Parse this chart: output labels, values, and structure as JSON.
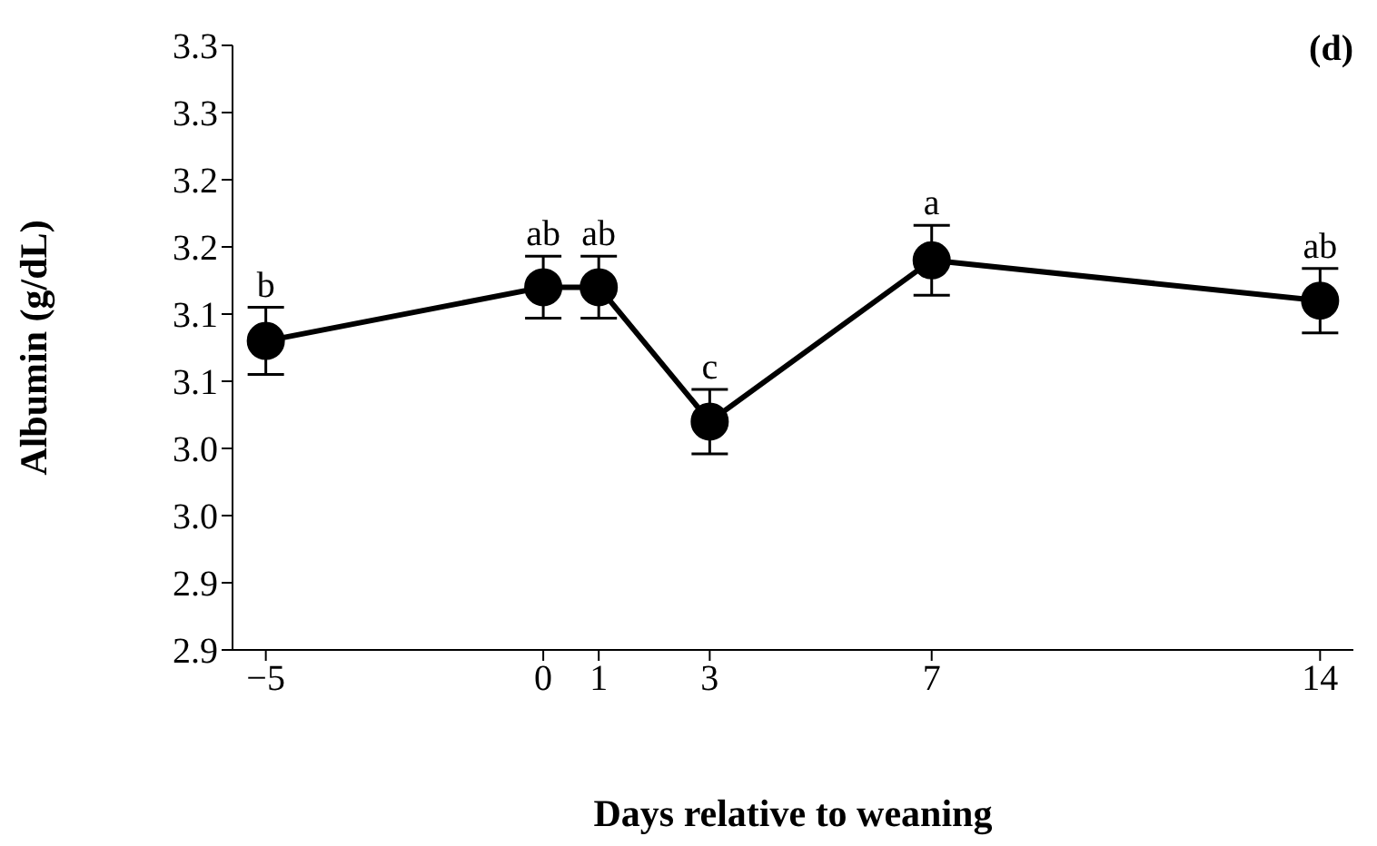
{
  "chart_data": {
    "type": "line",
    "xlabel": "Days relative to weaning",
    "ylabel": "Albumin (g/dL)",
    "x": [
      -5,
      0,
      1,
      3,
      7,
      14
    ],
    "series": [
      {
        "color": "#000000",
        "values": [
          3.13,
          3.17,
          3.17,
          3.07,
          3.19,
          3.16
        ],
        "errors": [
          0.025,
          0.023,
          0.023,
          0.024,
          0.026,
          0.024
        ]
      }
    ],
    "xlim": [
      -5.6,
      14.6
    ],
    "xticks": [
      {
        "value": -5,
        "label": "−5"
      },
      0,
      1,
      3,
      7,
      14
    ],
    "ylim": [
      2.9,
      3.35
    ],
    "yticks": [
      {
        "value": 2.9,
        "label": "2.9"
      },
      {
        "value": 2.95,
        "label": "2.9"
      },
      {
        "value": 3.0,
        "label": "3.0"
      },
      {
        "value": 3.05,
        "label": "3.0"
      },
      {
        "value": 3.1,
        "label": "3.1"
      },
      {
        "value": 3.15,
        "label": "3.1"
      },
      {
        "value": 3.2,
        "label": "3.2"
      },
      {
        "value": 3.25,
        "label": "3.2"
      },
      {
        "value": 3.3,
        "label": "3.3"
      },
      {
        "value": 3.35,
        "label": "3.3"
      }
    ],
    "marker": "circle",
    "line_style": "solid",
    "grid": false,
    "legend": false,
    "annotations": [
      "(d)",
      {
        "text": "b",
        "x": -5,
        "y": 3.155
      },
      {
        "text": "ab",
        "x": 0,
        "y": 3.193
      },
      {
        "text": "ab",
        "x": 1,
        "y": 3.193
      },
      {
        "text": "c",
        "x": 3,
        "y": 3.094
      },
      {
        "text": "a",
        "x": 7,
        "y": 3.216
      },
      {
        "text": "ab",
        "x": 14,
        "y": 3.184
      }
    ]
  }
}
